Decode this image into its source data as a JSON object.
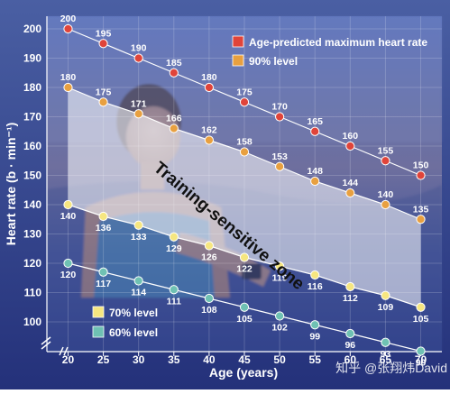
{
  "chart_data": {
    "type": "line",
    "xlabel": "Age (years)",
    "ylabel": "Heart rate (b · min⁻¹)",
    "x": [
      20,
      25,
      30,
      35,
      40,
      45,
      50,
      55,
      60,
      65,
      70
    ],
    "xlim": [
      17,
      73
    ],
    "ylim": [
      90,
      200
    ],
    "yticks": [
      100,
      110,
      120,
      130,
      140,
      150,
      160,
      170,
      180,
      190,
      200
    ],
    "axis_break": true,
    "background": "photo of a runner checking a wrist heart-rate monitor",
    "series": [
      {
        "name": "Age-predicted maximum heart rate",
        "color": "#e0443a",
        "values": [
          200,
          195,
          190,
          185,
          180,
          175,
          170,
          165,
          160,
          155,
          150
        ]
      },
      {
        "name": "90% level",
        "color": "#e8a040",
        "values": [
          180,
          175,
          171,
          166,
          162,
          158,
          153,
          148,
          144,
          140,
          135
        ]
      },
      {
        "name": "70% level",
        "color": "#f6e680",
        "values": [
          140,
          136,
          133,
          129,
          126,
          122,
          119,
          116,
          112,
          109,
          105
        ]
      },
      {
        "name": "60% level",
        "color": "#6fc1b3",
        "values": [
          120,
          117,
          114,
          111,
          108,
          105,
          102,
          99,
          96,
          93,
          90
        ]
      }
    ],
    "zone_label": "Training-sensitive zone",
    "zone_between": [
      "90% level",
      "70% level"
    ]
  },
  "watermark": "知乎 @张翔炜David"
}
